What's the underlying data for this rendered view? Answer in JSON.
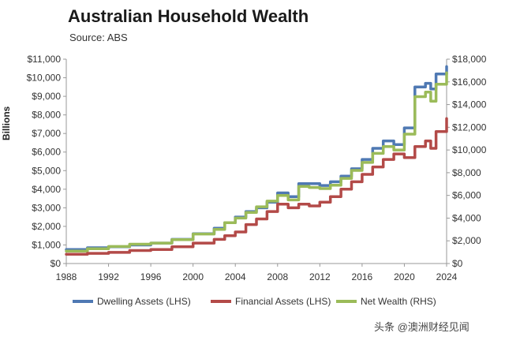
{
  "header": {
    "title": "Australian Household Wealth",
    "source": "Source: ABS"
  },
  "watermark": "头条 @澳洲财经见闻",
  "chart_data": {
    "type": "line",
    "title": "Australian Household Wealth",
    "subtitle": "Source: ABS",
    "xlabel": "",
    "ylabel": "Billions",
    "xlim": [
      1988,
      2024
    ],
    "ylim_left": [
      0,
      11000
    ],
    "ylim_right": [
      0,
      18000
    ],
    "left_tick_labels": [
      "$0",
      "$1,000",
      "$2,000",
      "$3,000",
      "$4,000",
      "$5,000",
      "$6,000",
      "$7,000",
      "$8,000",
      "$9,000",
      "$10,000",
      "$11,000"
    ],
    "left_tick_values": [
      0,
      1000,
      2000,
      3000,
      4000,
      5000,
      6000,
      7000,
      8000,
      9000,
      10000,
      11000
    ],
    "right_tick_labels": [
      "$0",
      "$2,000",
      "$4,000",
      "$6,000",
      "$8,000",
      "$10,000",
      "$12,000",
      "$14,000",
      "$16,000",
      "$18,000"
    ],
    "right_tick_values": [
      0,
      2000,
      4000,
      6000,
      8000,
      10000,
      12000,
      14000,
      16000,
      18000
    ],
    "x_tick_labels": [
      "1988",
      "1992",
      "1996",
      "2000",
      "2004",
      "2008",
      "2012",
      "2016",
      "2020",
      "2024"
    ],
    "x_tick_values": [
      1988,
      1992,
      1996,
      2000,
      2004,
      2008,
      2012,
      2016,
      2020,
      2024
    ],
    "legend_position": "bottom",
    "grid": false,
    "series": [
      {
        "name": "Dwelling Assets (LHS)",
        "axis": "left",
        "color": "#4f79b3",
        "x": [
          1988,
          1990,
          1992,
          1994,
          1996,
          1998,
          2000,
          2002,
          2003,
          2004,
          2005,
          2006,
          2007,
          2008,
          2009,
          2010,
          2011,
          2012,
          2013,
          2014,
          2015,
          2016,
          2017,
          2018,
          2019,
          2020,
          2021,
          2022,
          2022.5,
          2023,
          2024
        ],
        "values": [
          750,
          850,
          900,
          1000,
          1100,
          1300,
          1600,
          1900,
          2200,
          2500,
          2800,
          3000,
          3300,
          3800,
          3600,
          4300,
          4300,
          4200,
          4400,
          4700,
          5100,
          5600,
          6200,
          6600,
          6400,
          7300,
          9500,
          9700,
          9400,
          10200,
          10600
        ]
      },
      {
        "name": "Financial Assets (LHS)",
        "axis": "left",
        "color": "#b34a48",
        "x": [
          1988,
          1990,
          1992,
          1994,
          1996,
          1998,
          2000,
          2002,
          2003,
          2004,
          2005,
          2006,
          2007,
          2008,
          2009,
          2010,
          2011,
          2012,
          2013,
          2014,
          2015,
          2016,
          2017,
          2018,
          2019,
          2020,
          2021,
          2022,
          2022.5,
          2023,
          2024
        ],
        "values": [
          500,
          550,
          600,
          700,
          750,
          900,
          1100,
          1300,
          1500,
          1700,
          2100,
          2400,
          2800,
          3200,
          3000,
          3200,
          3100,
          3300,
          3600,
          4000,
          4400,
          4800,
          5200,
          5600,
          5900,
          5700,
          6300,
          6600,
          6200,
          7100,
          7800
        ]
      },
      {
        "name": "Net Wealth (RHS)",
        "axis": "right",
        "color": "#9bbb59",
        "x": [
          1988,
          1990,
          1992,
          1994,
          1996,
          1998,
          2000,
          2002,
          2003,
          2004,
          2005,
          2006,
          2007,
          2008,
          2009,
          2010,
          2011,
          2012,
          2013,
          2014,
          2015,
          2016,
          2017,
          2018,
          2019,
          2020,
          2021,
          2022,
          2022.5,
          2023,
          2024
        ],
        "values": [
          1100,
          1300,
          1500,
          1700,
          1800,
          2100,
          2600,
          3000,
          3600,
          4000,
          4500,
          5000,
          5500,
          6000,
          5600,
          6800,
          6700,
          6600,
          6900,
          7500,
          8200,
          8900,
          9700,
          10300,
          10000,
          11400,
          14700,
          15100,
          14300,
          15800,
          16800
        ]
      }
    ]
  }
}
